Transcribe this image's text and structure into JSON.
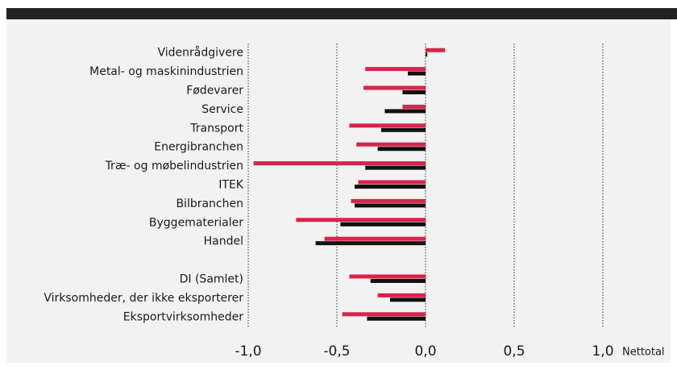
{
  "chart_data": {
    "type": "bar",
    "orientation": "horizontal",
    "categories": [
      "Videnrådgivere",
      "Metal- og maskinindustrien",
      "Fødevarer",
      "Service",
      "Transport",
      "Energibranchen",
      "Træ- og møbelindustrien",
      "ITEK",
      "Bilbranchen",
      "Byggematerialer",
      "Handel",
      null,
      "DI (Samlet)",
      "Virksomheder, der ikke eksporterer",
      "Eksportvirksomheder"
    ],
    "series": [
      {
        "color": "#d7244a",
        "values": [
          0.11,
          -0.34,
          -0.35,
          -0.13,
          -0.43,
          -0.39,
          -0.97,
          -0.38,
          -0.42,
          -0.73,
          -0.57,
          null,
          -0.43,
          -0.27,
          -0.47
        ]
      },
      {
        "color": "#111111",
        "values": [
          0.01,
          -0.1,
          -0.13,
          -0.23,
          -0.25,
          -0.27,
          -0.34,
          -0.4,
          -0.4,
          -0.48,
          -0.62,
          null,
          -0.31,
          -0.2,
          -0.33
        ]
      }
    ],
    "xlabel": "Nettotal",
    "xlim": [
      -1,
      1
    ],
    "xticks": [
      {
        "value": -1,
        "label": "-1,0"
      },
      {
        "value": -0.5,
        "label": "-0,5"
      },
      {
        "value": 0,
        "label": "0,0"
      },
      {
        "value": 0.5,
        "label": "0,5"
      },
      {
        "value": 1,
        "label": "1,0"
      }
    ],
    "grid": true
  }
}
